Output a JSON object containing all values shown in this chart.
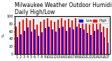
{
  "title": "Milwaukee Weather Outdoor Humidity",
  "subtitle": "Daily High/Low",
  "bar_width": 0.35,
  "high_color": "#ff0000",
  "low_color": "#0000ff",
  "legend_high": "High",
  "legend_low": "Low",
  "ylim": [
    0,
    100
  ],
  "bg_color": "#ffffff",
  "plot_bg": "#f0f0f0",
  "highs": [
    72,
    85,
    90,
    95,
    88,
    92,
    78,
    85,
    90,
    95,
    88,
    85,
    90,
    95,
    88,
    92,
    88,
    95,
    92,
    90,
    82,
    78,
    88,
    90,
    85,
    72,
    68
  ],
  "lows": [
    45,
    52,
    62,
    70,
    60,
    65,
    48,
    58,
    68,
    72,
    65,
    60,
    68,
    72,
    62,
    70,
    65,
    72,
    68,
    65,
    55,
    50,
    62,
    65,
    58,
    45,
    30
  ],
  "x_labels": [
    "1",
    "2",
    "3",
    "4",
    "5",
    "6",
    "7",
    "8",
    "9",
    "10",
    "11",
    "12",
    "13",
    "14",
    "15",
    "16",
    "17",
    "18",
    "19",
    "20",
    "21",
    "22",
    "23",
    "24",
    "25",
    "26",
    "27"
  ],
  "title_fontsize": 5.5,
  "tick_fontsize": 3.5,
  "legend_fontsize": 3.5,
  "ylabel": "%",
  "ylabel_fontsize": 4
}
